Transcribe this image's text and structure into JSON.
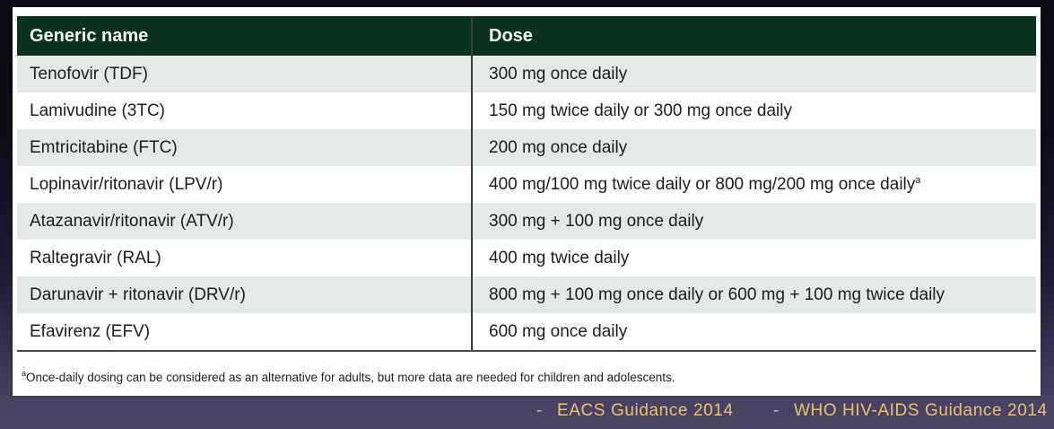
{
  "slide": {
    "table": {
      "columns": [
        {
          "label": "Generic name"
        },
        {
          "label": "Dose"
        }
      ],
      "rows": [
        {
          "name": "Tenofovir (TDF)",
          "dose": "300 mg once daily"
        },
        {
          "name": "Lamivudine (3TC)",
          "dose": "150 mg twice daily or 300 mg once daily"
        },
        {
          "name": "Emtricitabine (FTC)",
          "dose": "200 mg once daily"
        },
        {
          "name": "Lopinavir/ritonavir (LPV/r)",
          "dose": "400 mg/100 mg twice daily or 800 mg/200 mg once daily",
          "dose_sup": "a"
        },
        {
          "name": "Atazanavir/ritonavir (ATV/r)",
          "dose": "300 mg + 100 mg once daily"
        },
        {
          "name": "Raltegravir (RAL)",
          "dose": "400 mg twice daily"
        },
        {
          "name": "Darunavir + ritonavir (DRV/r)",
          "dose": "800 mg + 100 mg once daily or 600 mg + 100 mg twice daily"
        },
        {
          "name": "Efavirenz (EFV)",
          "dose": "600 mg once daily"
        }
      ],
      "footnote": {
        "sup": "a",
        "text": "Once-daily dosing can be considered as an alternative for adults, but more data are needed for children and adolescents."
      }
    },
    "footer": {
      "citations": [
        {
          "dash": "-",
          "label": "EACS Guidance 2014"
        },
        {
          "dash": "-",
          "label": "WHO HIV-AIDS Guidance 2014"
        }
      ]
    },
    "colors": {
      "header_bg": "#07331f",
      "header_text": "#ffffff",
      "stripe": "#e4e8e6",
      "row_text": "#1d1d1b",
      "column_divider": "#3b3b3b",
      "citation_text": "#e4c178",
      "background_top": "#0b0a13",
      "background_bottom": "#4b4564"
    }
  }
}
